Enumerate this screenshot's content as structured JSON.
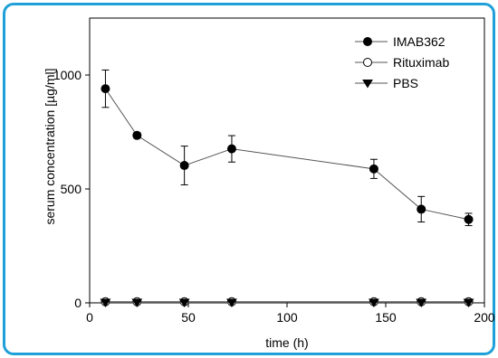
{
  "chart_data": {
    "type": "line",
    "xlabel": "time (h)",
    "ylabel": "serum concentration [µg/ml]",
    "xlim": [
      0,
      200
    ],
    "ylim": [
      0,
      1250
    ],
    "xticks": [
      0,
      50,
      100,
      150,
      200
    ],
    "yticks": [
      0,
      500,
      1000
    ],
    "grid": false,
    "legend_position": "top-right",
    "series": [
      {
        "name": "IMAB362",
        "marker": "filled-circle",
        "x": [
          8,
          24,
          48,
          72,
          144,
          168,
          192
        ],
        "values": [
          940,
          735,
          603,
          676,
          588,
          411,
          366
        ],
        "errors": [
          82,
          12,
          85,
          58,
          42,
          56,
          27
        ]
      },
      {
        "name": "Rituximab",
        "marker": "open-circle",
        "x": [
          8,
          24,
          48,
          72,
          144,
          168,
          192
        ],
        "values": [
          5,
          5,
          5,
          5,
          5,
          5,
          5
        ]
      },
      {
        "name": "PBS",
        "marker": "filled-triangle-down",
        "x": [
          8,
          24,
          48,
          72,
          144,
          168,
          192
        ],
        "values": [
          2,
          2,
          2,
          2,
          2,
          2,
          2
        ]
      }
    ]
  },
  "colors": {
    "frame_border": "#1fa0d8",
    "series": "#000000",
    "line": "#555555"
  }
}
